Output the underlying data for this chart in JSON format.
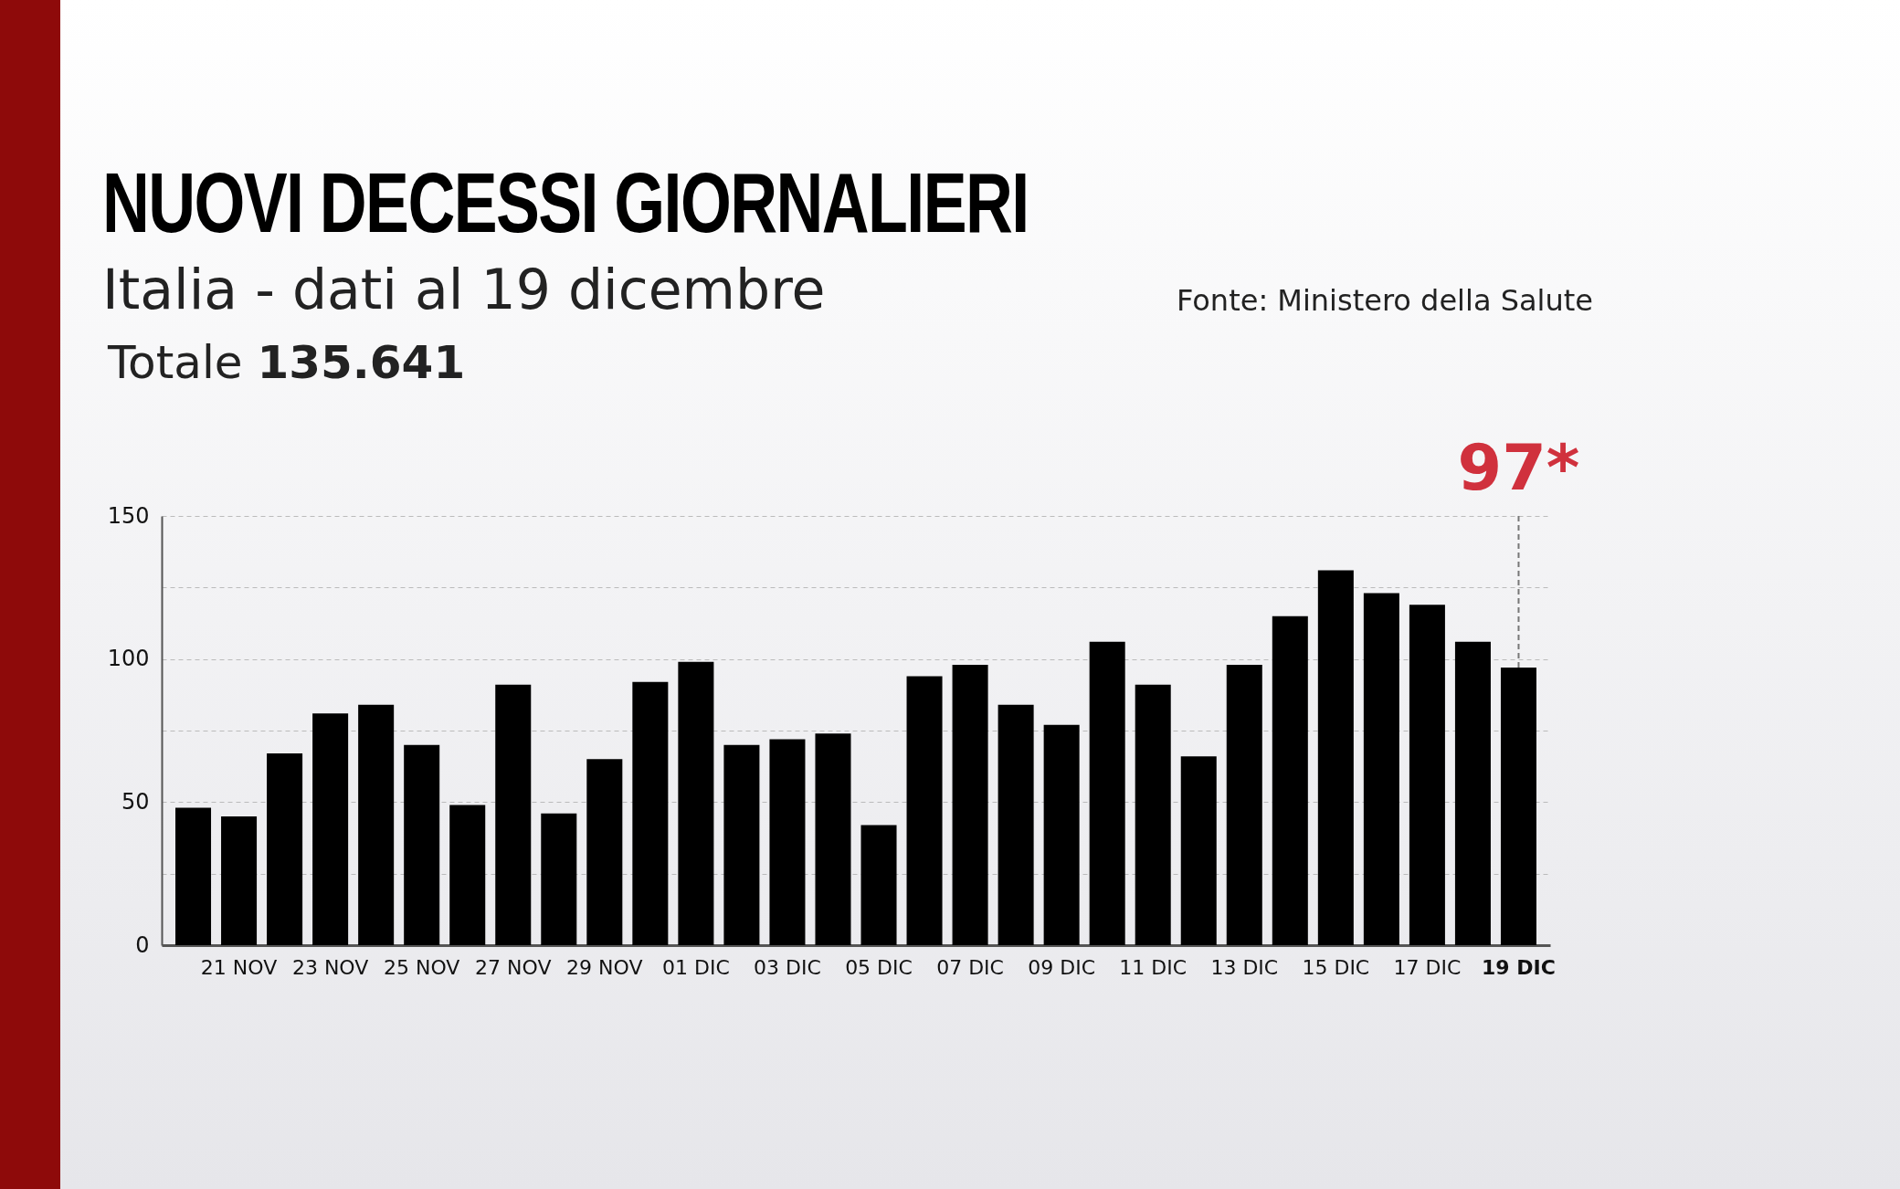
{
  "chart_data": {
    "type": "bar",
    "title": "NUOVI DECESSI GIORNALIERI",
    "subtitle": "Italia - dati al 19 dicembre",
    "annotations": [
      "Totale 135.641",
      "Fonte: Ministero della Salute"
    ],
    "categories": [
      null,
      "21 NOV",
      null,
      "23 NOV",
      null,
      "25 NOV",
      null,
      "27 NOV",
      null,
      "29 NOV",
      null,
      "01 DIC",
      null,
      "03 DIC",
      null,
      "05 DIC",
      null,
      "07 DIC",
      null,
      "09 DIC",
      null,
      "11 DIC",
      null,
      "13 DIC",
      null,
      "15 DIC",
      null,
      "17 DIC",
      null,
      "19 DIC"
    ],
    "values": [
      48,
      45,
      67,
      81,
      84,
      70,
      49,
      91,
      46,
      65,
      92,
      99,
      70,
      72,
      74,
      42,
      94,
      98,
      84,
      77,
      106,
      91,
      66,
      98,
      115,
      131,
      123,
      119,
      106,
      97
    ],
    "value_labels": [
      null,
      null,
      null,
      null,
      null,
      null,
      null,
      null,
      null,
      null,
      null,
      null,
      null,
      null,
      null,
      null,
      null,
      null,
      null,
      null,
      null,
      null,
      null,
      null,
      null,
      null,
      null,
      null,
      null,
      "97*"
    ],
    "color": "#000000",
    "ylim": [
      0,
      150
    ],
    "yticks": [
      0,
      {
        "value": 25,
        "label": null
      },
      50,
      {
        "value": 75,
        "label": null
      },
      100,
      {
        "value": 125,
        "label": null
      },
      150
    ],
    "grid": "y"
  }
}
